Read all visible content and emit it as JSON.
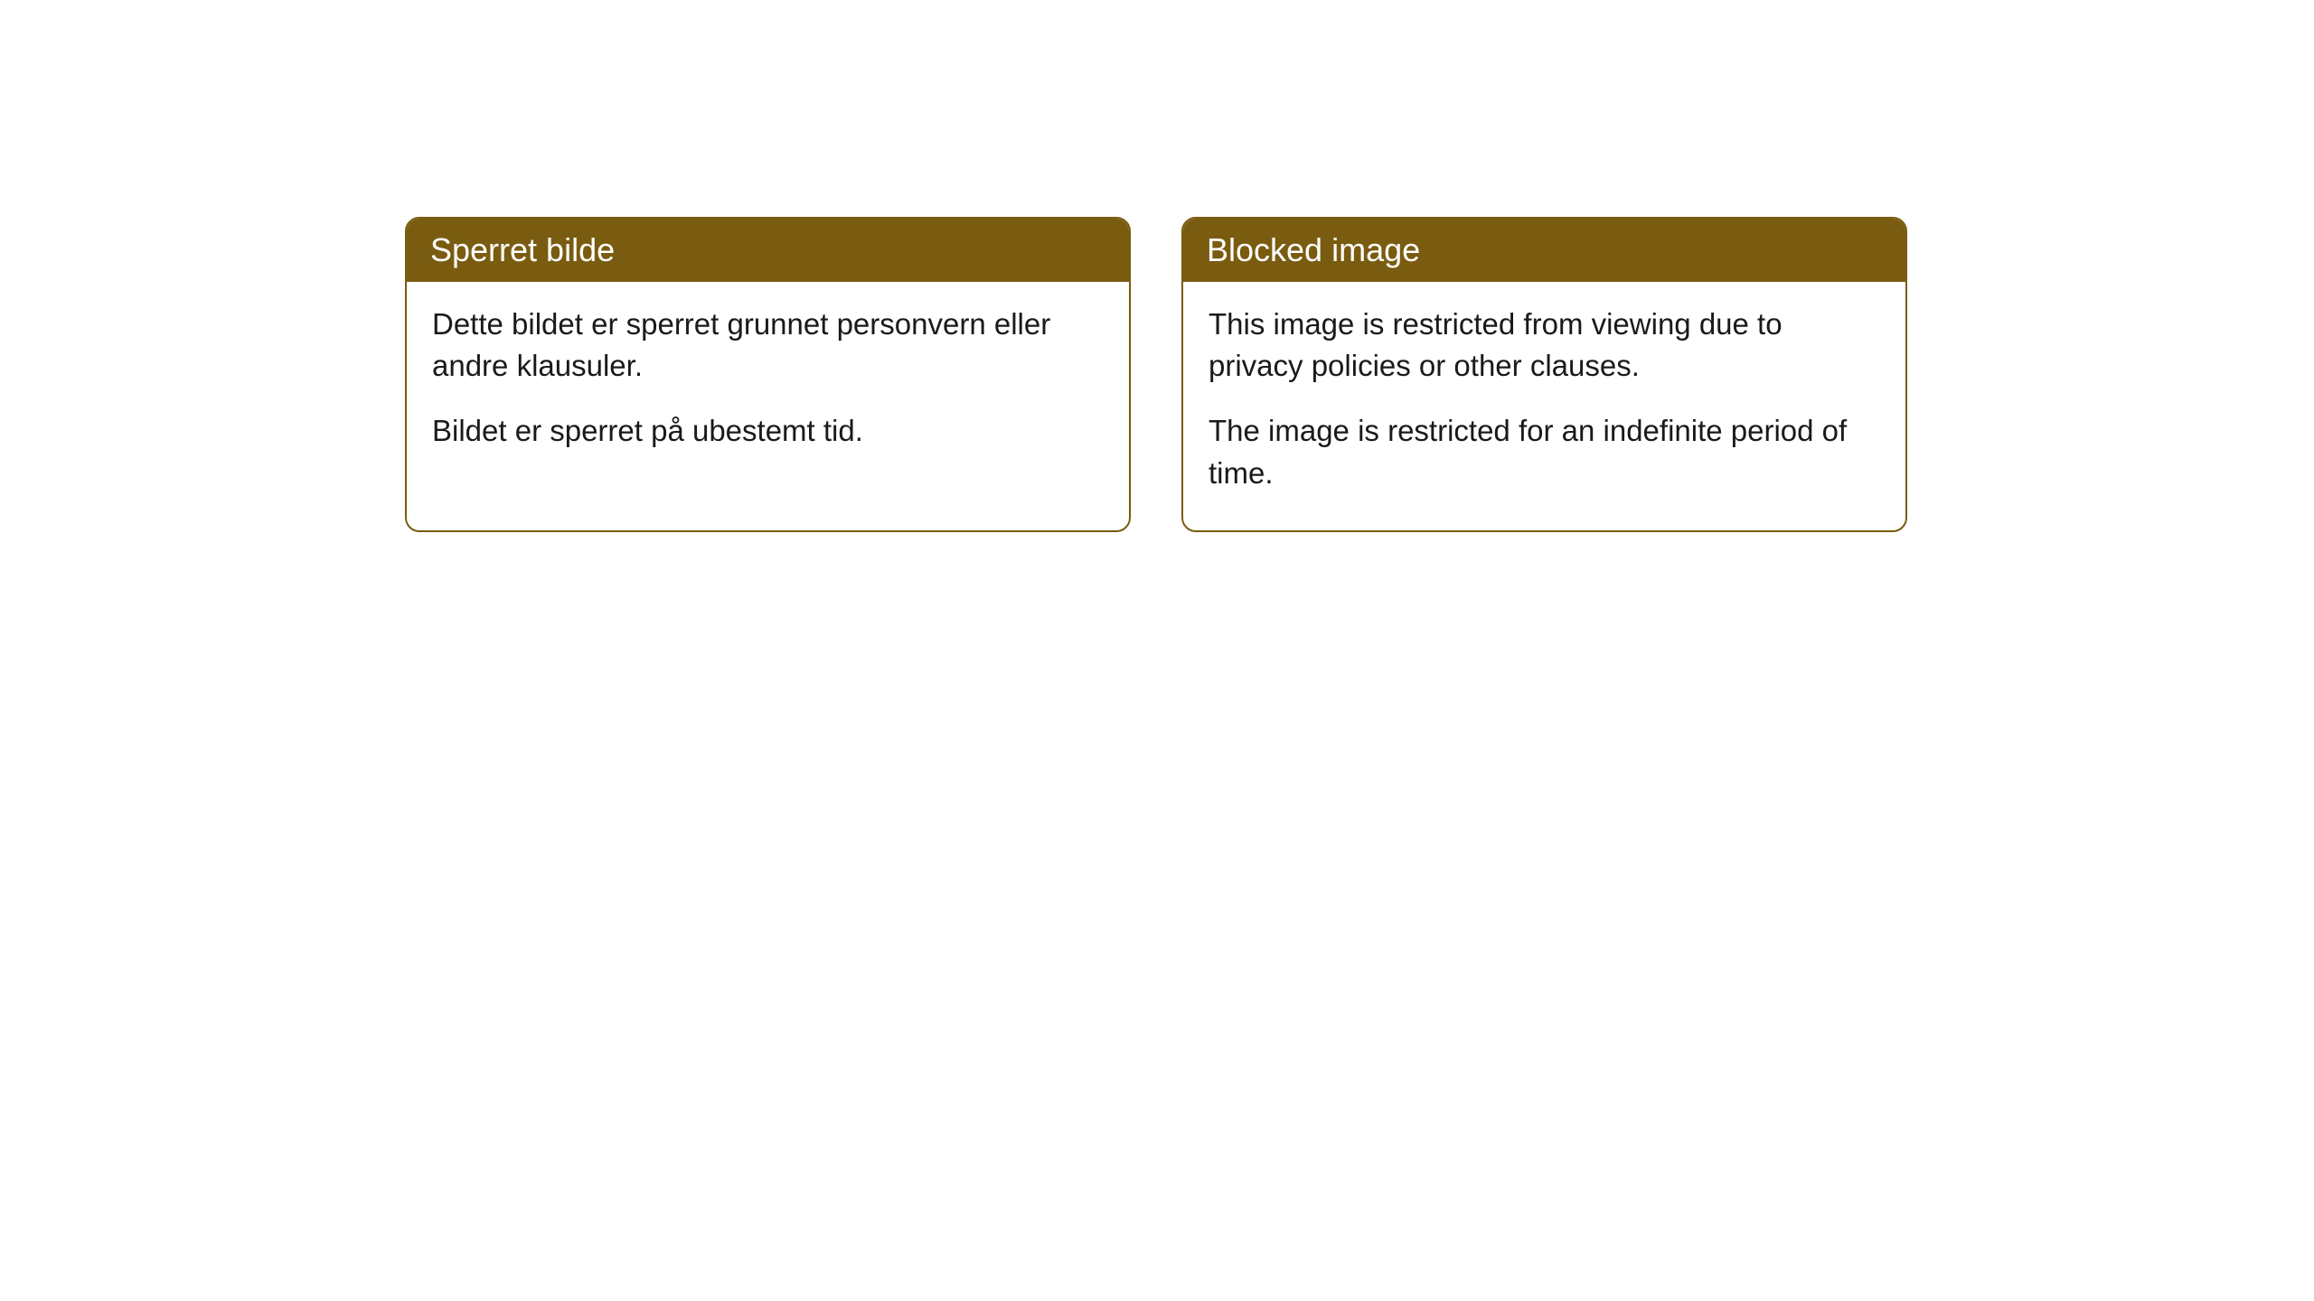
{
  "cards": [
    {
      "title": "Sperret bilde",
      "paragraph1": "Dette bildet er sperret grunnet personvern eller andre klausuler.",
      "paragraph2": "Bildet er sperret på ubestemt tid."
    },
    {
      "title": "Blocked image",
      "paragraph1": "This image is restricted from viewing due to privacy policies or other clauses.",
      "paragraph2": "The image is restricted for an indefinite period of time."
    }
  ],
  "styling": {
    "header_background": "#7a5c10",
    "header_text_color": "#ffffff",
    "border_color": "#7a5c10",
    "card_background": "#ffffff",
    "body_text_color": "#1a1a1a",
    "border_radius": 16,
    "title_fontsize": 36,
    "body_fontsize": 33
  }
}
